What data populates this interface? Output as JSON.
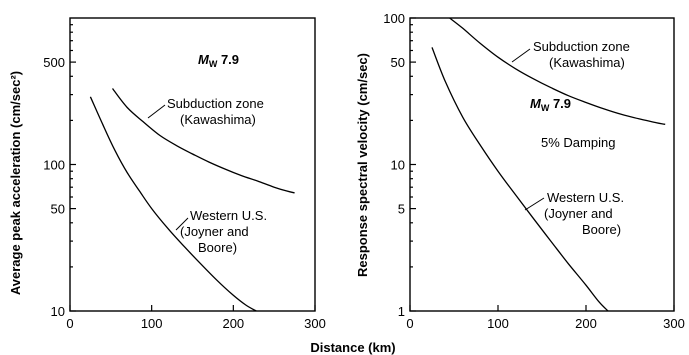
{
  "shared_xlabel": "Distance (km)",
  "chart_data": [
    {
      "type": "line",
      "xlabel": "",
      "ylabel": "Average peak acceleration (cm/sec²)",
      "xlim": [
        0,
        300
      ],
      "ylim": [
        10,
        1000
      ],
      "yscale": "log",
      "xticks": [
        0,
        100,
        200,
        300
      ],
      "yticks": [
        10,
        50,
        100,
        500
      ],
      "grid": false,
      "annotations": [
        {
          "text": "7.9",
          "prefix": "M",
          "subscript": "W"
        }
      ],
      "series": [
        {
          "name": "Subduction zone (Kawashima)",
          "label_lines": [
            "Subduction zone",
            "(Kawashima)"
          ],
          "x": [
            52,
            70,
            90,
            110,
            130,
            150,
            170,
            190,
            210,
            230,
            250,
            265,
            275
          ],
          "y": [
            330,
            245,
            195,
            158,
            135,
            118,
            104,
            93,
            84,
            77,
            70,
            66,
            64
          ]
        },
        {
          "name": "Western U.S. (Joyner and Boore)",
          "label_lines": [
            "Western U.S.",
            "(Joyner and",
            "Boore)"
          ],
          "x": [
            25,
            40,
            55,
            70,
            85,
            100,
            120,
            140,
            160,
            180,
            200,
            215,
            228
          ],
          "y": [
            290,
            188,
            125,
            88,
            66,
            50,
            36.5,
            27.5,
            21,
            16.2,
            12.8,
            11,
            10
          ]
        }
      ]
    },
    {
      "type": "line",
      "xlabel": "",
      "ylabel": "Response spectral velocity (cm/sec)",
      "xlim": [
        0,
        300
      ],
      "ylim": [
        1,
        100
      ],
      "yscale": "log",
      "xticks": [
        0,
        100,
        200,
        300
      ],
      "yticks": [
        1,
        5,
        10,
        50,
        100
      ],
      "grid": false,
      "annotations": [
        {
          "text": "7.9",
          "prefix": "M",
          "subscript": "W"
        },
        {
          "text": "5% Damping"
        }
      ],
      "series": [
        {
          "name": "Subduction zone (Kawashima)",
          "label_lines": [
            "Subduction zone",
            "(Kawashima)"
          ],
          "x": [
            45,
            60,
            80,
            100,
            120,
            140,
            160,
            180,
            200,
            220,
            240,
            260,
            280,
            290
          ],
          "y": [
            100,
            85,
            67,
            54,
            45,
            38.5,
            33.5,
            29.5,
            26.5,
            24,
            22,
            20.5,
            19.3,
            18.8
          ]
        },
        {
          "name": "Western U.S. (Joyner and Boore)",
          "label_lines": [
            "Western U.S.",
            "(Joyner and",
            "Boore)"
          ],
          "x": [
            25,
            40,
            60,
            80,
            100,
            120,
            140,
            160,
            180,
            200,
            215,
            225
          ],
          "y": [
            63,
            37,
            21,
            13.5,
            9,
            6.2,
            4.3,
            3,
            2.1,
            1.5,
            1.15,
            1
          ]
        }
      ]
    }
  ]
}
